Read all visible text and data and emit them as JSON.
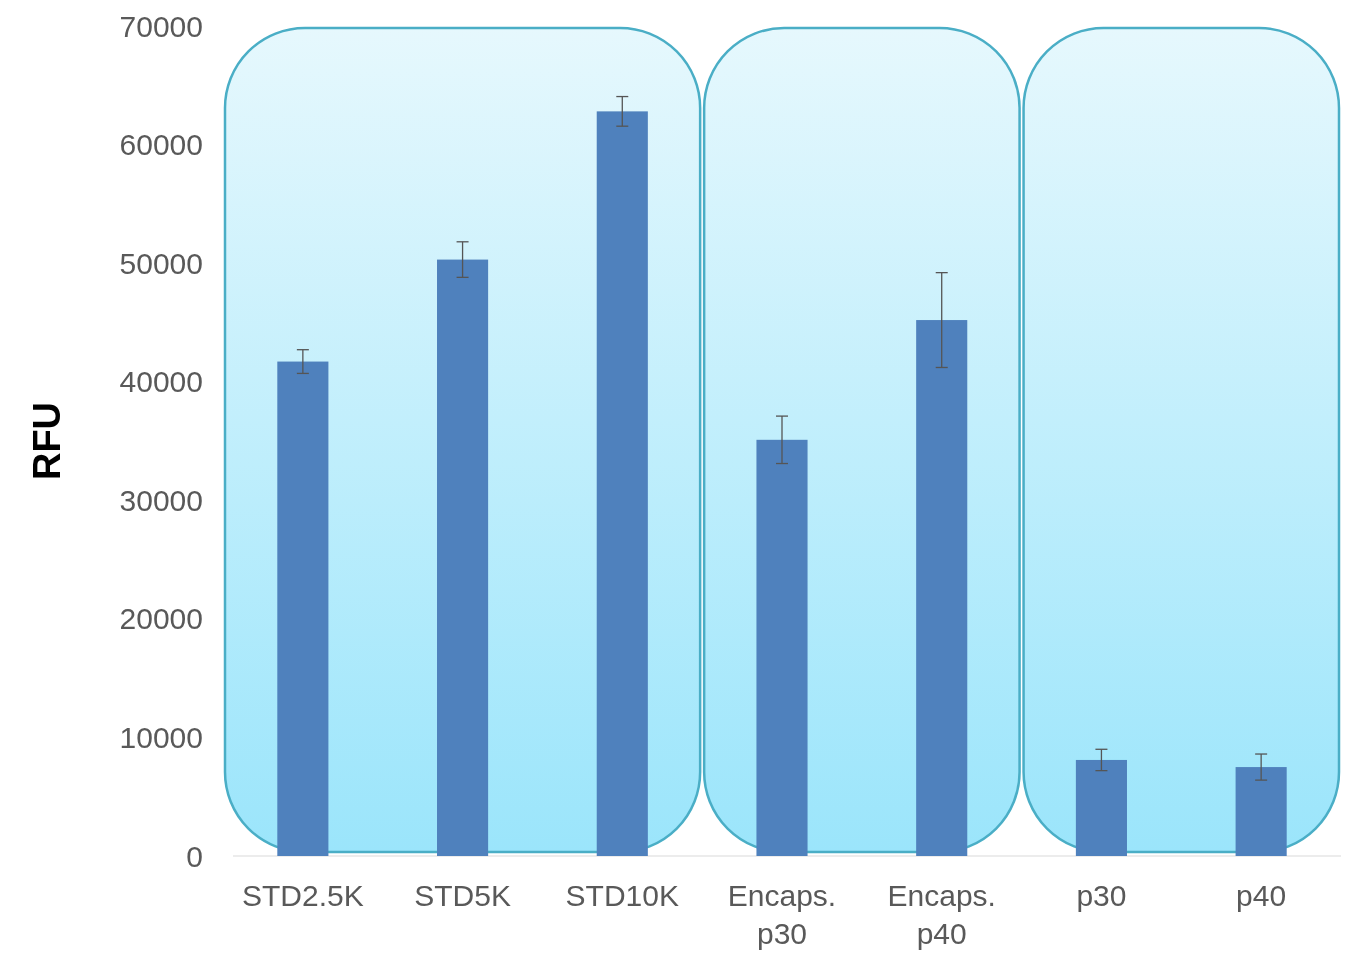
{
  "chart_data": {
    "type": "bar",
    "ylabel": "RFU",
    "categories": [
      "STD2.5K",
      "STD5K",
      "STD10K",
      "Encaps. p30",
      "Encaps. p40",
      "p30",
      "p40"
    ],
    "values": [
      41700,
      50300,
      62800,
      35100,
      45200,
      8100,
      7500
    ],
    "errors": [
      1000,
      1500,
      1250,
      2000,
      4000,
      900,
      1100
    ],
    "color": "#4f81bd",
    "ylim": [
      0,
      70000
    ],
    "yticks": [
      0,
      10000,
      20000,
      30000,
      40000,
      50000,
      60000,
      70000
    ],
    "grid": false
  }
}
